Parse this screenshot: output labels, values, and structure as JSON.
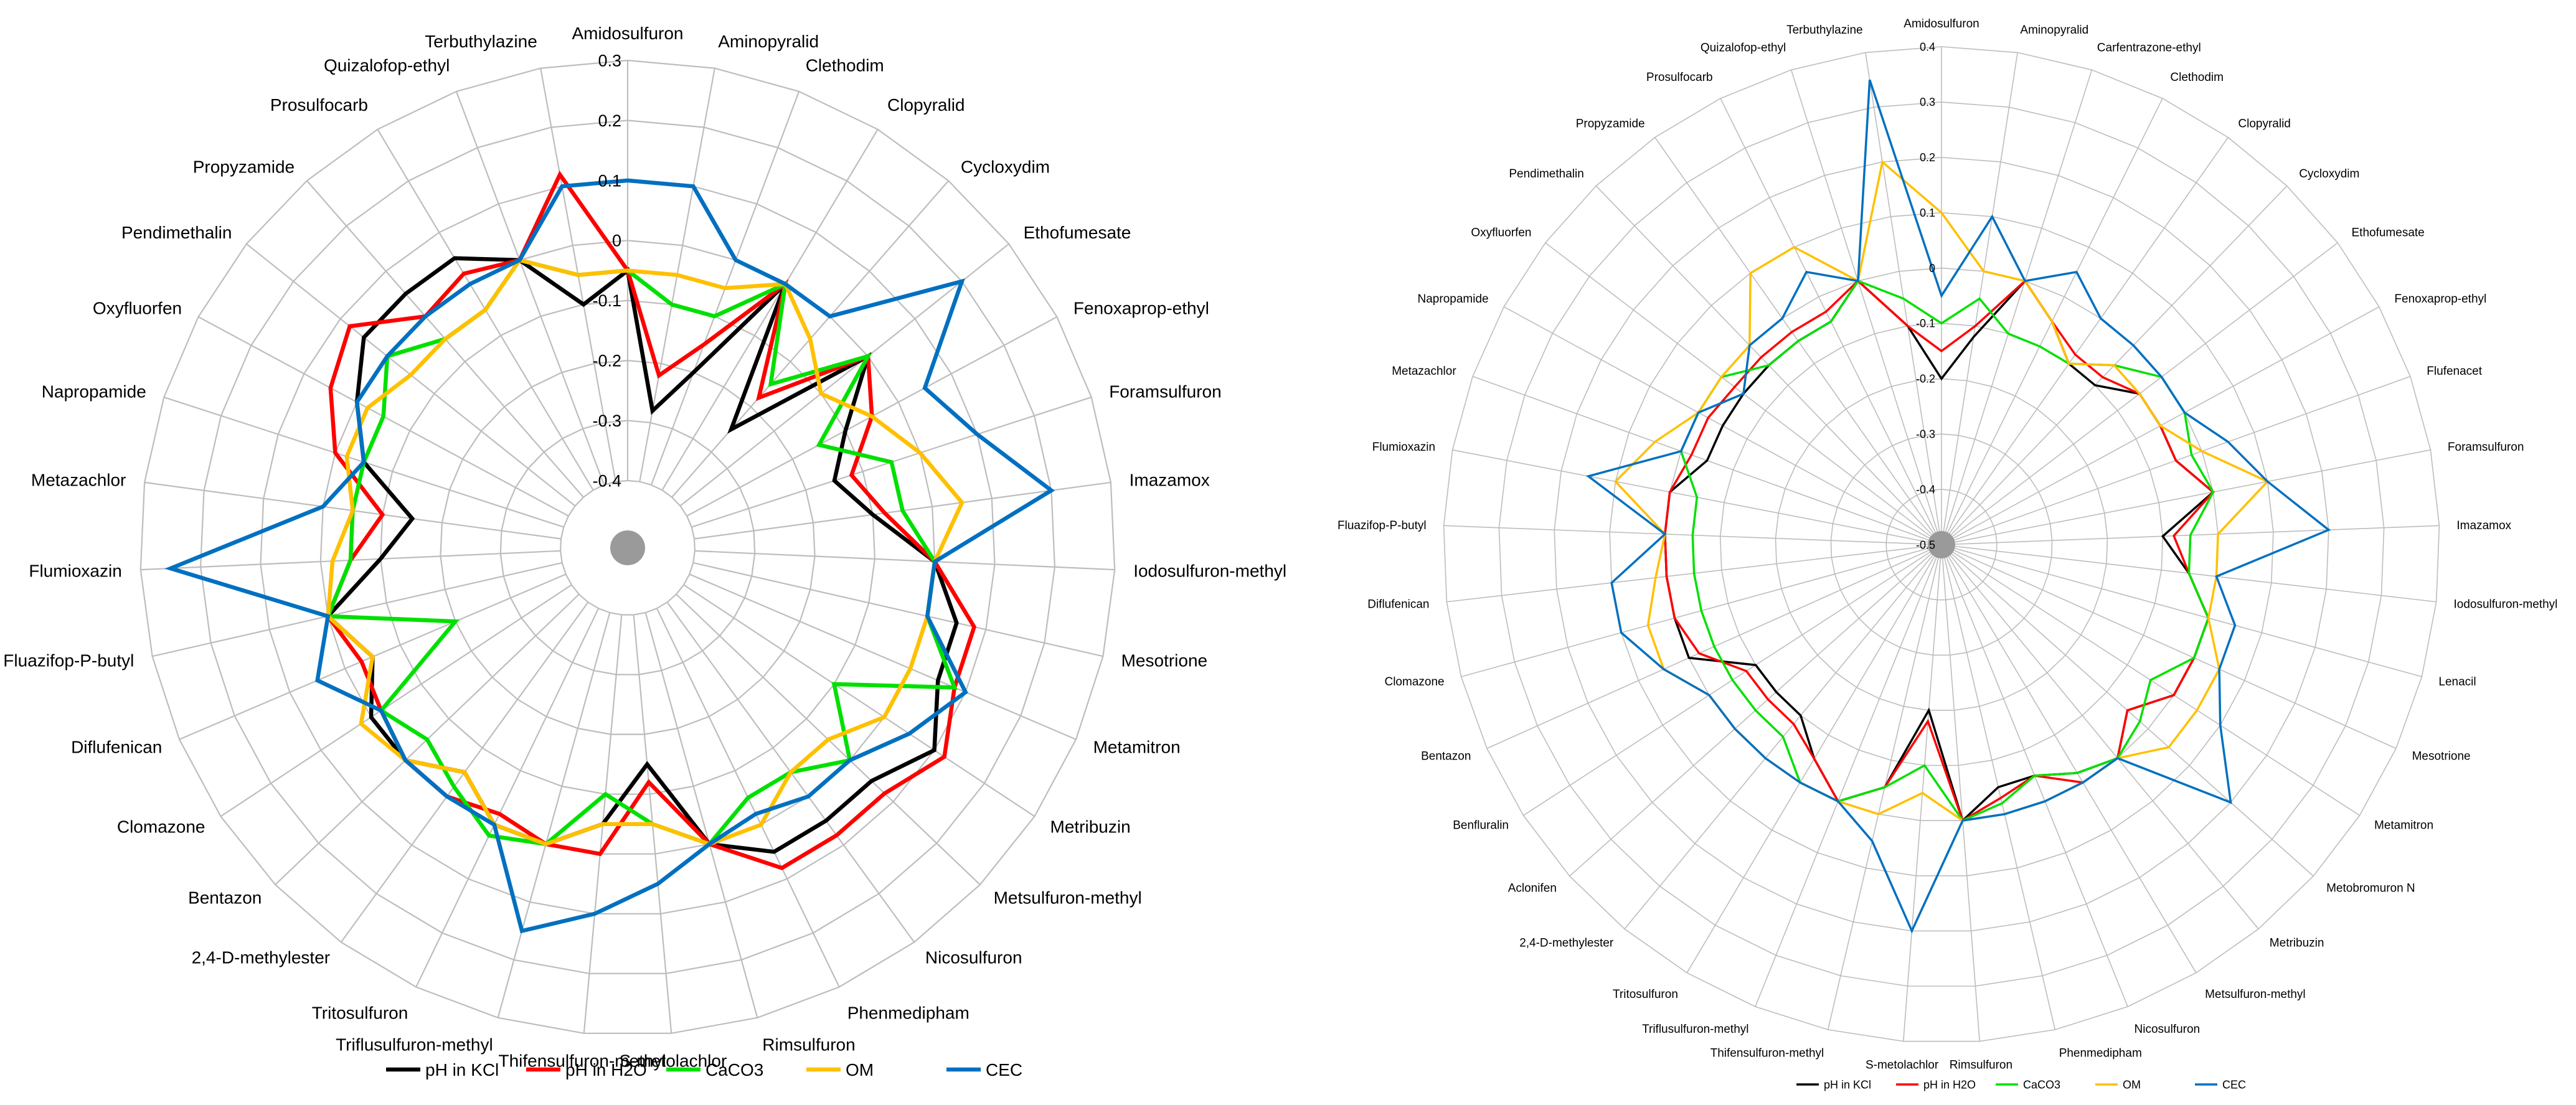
{
  "colors": {
    "pH in KCl": "#000000",
    "pH in H2O": "#ff0000",
    "CaCO3": "#00e000",
    "OM": "#ffc000",
    "CEC": "#0070c0"
  },
  "chart_data": [
    {
      "type": "radar",
      "ylim": [
        -0.4,
        0.3
      ],
      "ticks": [
        "-0.4",
        "-0.3",
        "-0.2",
        "-0.1",
        "0",
        "0.1",
        "0.2",
        "0.3"
      ],
      "categories": [
        "Amidosulfuron",
        "Aminopyralid",
        "Clethodim",
        "Clopyralid",
        "Cycloxydim",
        "Ethofumesate",
        "Fenoxaprop-ethyl",
        "Foramsulfuron",
        "Imazamox",
        "Iodosulfuron-methyl",
        "Mesotrione",
        "Metamitron",
        "Metribuzin",
        "Metsulfuron-methyl",
        "Nicosulfuron",
        "Phenmedipham",
        "Rimsulfuron",
        "S-metolachlor",
        "Thifensulfuron-methyl",
        "Triflusulfuron-methyl",
        "Tritosulfuron",
        "2,4-D-methylester",
        "Bentazon",
        "Clomazone",
        "Diflufenican",
        "Fluazifop-P-butyl",
        "Flumioxazin",
        "Metazachlor",
        "Napropamide",
        "Oxyfluorfen",
        "Pendimethalin",
        "Propyzamide",
        "Prosulfocarb",
        "Quizalofop-ethyl",
        "Terbuthylazine"
      ],
      "series": [
        {
          "name": "pH in KCl",
          "values": [
            -0.05,
            -0.28,
            -0.2,
            0,
            -0.25,
            0,
            -0.1,
            -0.15,
            -0.1,
            0,
            0.05,
            0.05,
            0.1,
            0.05,
            0.05,
            0.05,
            0,
            -0.15,
            -0.05,
            0,
            0,
            -0.05,
            0,
            0,
            -0.05,
            0,
            -0.1,
            -0.15,
            -0.05,
            0,
            0.05,
            0.05,
            0.05,
            0,
            -0.1
          ]
        },
        {
          "name": "pH in H2O",
          "values": [
            -0.05,
            -0.22,
            -0.15,
            0,
            -0.18,
            0,
            -0.05,
            -0.12,
            -0.08,
            0,
            0.08,
            0.08,
            0.12,
            0.08,
            0.08,
            0.08,
            0,
            -0.12,
            0,
            0,
            -0.02,
            0,
            0,
            -0.02,
            -0.03,
            0,
            -0.05,
            -0.1,
            0,
            0.05,
            0.08,
            0,
            0.02,
            0,
            0.12
          ]
        },
        {
          "name": "CaCO3",
          "values": [
            -0.05,
            -0.1,
            -0.1,
            0,
            -0.15,
            0,
            -0.15,
            -0.05,
            -0.05,
            0,
            0,
            0.08,
            -0.1,
            0,
            -0.05,
            -0.05,
            0,
            -0.05,
            -0.1,
            0,
            0.02,
            -0.02,
            -0.05,
            -0.02,
            -0.2,
            0,
            -0.05,
            -0.05,
            -0.05,
            -0.05,
            0,
            -0.05,
            -0.05,
            0,
            -0.05
          ]
        },
        {
          "name": "OM",
          "values": [
            -0.05,
            -0.05,
            -0.05,
            0,
            -0.05,
            -0.1,
            -0.05,
            0,
            0.05,
            0,
            0,
            0,
            0,
            -0.05,
            -0.05,
            0,
            0,
            -0.05,
            -0.05,
            0,
            0,
            -0.05,
            0,
            0.02,
            -0.05,
            0,
            -0.02,
            -0.05,
            -0.02,
            -0.02,
            -0.05,
            -0.05,
            -0.05,
            0,
            -0.05
          ]
        },
        {
          "name": "CEC",
          "values": [
            0.1,
            0.1,
            0,
            0,
            0,
            0.2,
            0.05,
            0.1,
            0.2,
            0,
            0,
            0.1,
            0.05,
            0,
            0,
            -0.02,
            0,
            0.05,
            0.1,
            0.15,
            0,
            0,
            0,
            -0.02,
            0.05,
            0,
            0.25,
            0,
            -0.05,
            0,
            0,
            0,
            0,
            0,
            0.1
          ]
        }
      ]
    },
    {
      "type": "radar",
      "ylim": [
        -0.5,
        0.4
      ],
      "ticks": [
        "-0.5",
        "-0.4",
        "-0.3",
        "-0.2",
        "-0.1",
        "0",
        "0.1",
        "0.2",
        "0.3",
        "0.4"
      ],
      "categories": [
        "Amidosulfuron",
        "Aminopyralid",
        "Carfentrazone-ethyl",
        "Clethodim",
        "Clopyralid",
        "Cycloxydim",
        "Ethofumesate",
        "Fenoxaprop-ethyl",
        "Flufenacet",
        "Foramsulfuron",
        "Imazamox",
        "Iodosulfuron-methyl",
        "Lenacil",
        "Mesotrione",
        "Metamitron",
        "Metobromuron N",
        "Metribuzin",
        "Metsulfuron-methyl",
        "Nicosulfuron",
        "Phenmedipham",
        "Rimsulfuron",
        "S-metolachlor",
        "Thifensulfuron-methyl",
        "Triflusulfuron-methyl",
        "Tritosulfuron",
        "2,4-D-methylester",
        "Aclonifen",
        "Benfluralin",
        "Bentazon",
        "Clomazone",
        "Diflufenican",
        "Fluazifop-P-butyl",
        "Flumioxazin",
        "Metazachlor",
        "Napropamide",
        "Oxyfluorfen",
        "Pendimethalin",
        "Propyzamide",
        "Prosulfocarb",
        "Quizalofop-ethyl",
        "Terbuthylazine"
      ],
      "series": [
        {
          "name": "pH in KCl",
          "values": [
            -0.2,
            -0.12,
            0,
            -0.05,
            -0.1,
            -0.1,
            -0.05,
            -0.05,
            -0.05,
            0,
            -0.1,
            -0.05,
            0,
            0,
            0,
            -0.05,
            0,
            -0.02,
            -0.05,
            -0.05,
            0,
            -0.2,
            -0.05,
            0,
            -0.05,
            -0.1,
            -0.1,
            -0.1,
            0,
            0,
            0,
            0,
            0,
            -0.05,
            -0.05,
            -0.05,
            -0.05,
            -0.05,
            -0.05,
            0,
            -0.1
          ]
        },
        {
          "name": "pH in H2O",
          "values": [
            -0.15,
            -0.1,
            0,
            -0.05,
            -0.08,
            -0.08,
            -0.05,
            -0.05,
            -0.05,
            0,
            -0.08,
            -0.05,
            0,
            0,
            0,
            -0.05,
            0,
            0,
            -0.05,
            -0.03,
            0,
            -0.18,
            -0.05,
            0,
            -0.05,
            -0.08,
            -0.08,
            -0.08,
            -0.02,
            0,
            0,
            0,
            0,
            -0.02,
            -0.02,
            -0.03,
            -0.03,
            -0.03,
            -0.03,
            0,
            -0.1
          ]
        },
        {
          "name": "CaCO3",
          "values": [
            -0.1,
            -0.05,
            -0.1,
            -0.1,
            -0.1,
            -0.05,
            0,
            0,
            -0.02,
            0,
            -0.05,
            -0.05,
            0,
            0,
            -0.05,
            -0.02,
            0,
            -0.02,
            -0.05,
            -0.02,
            0,
            -0.1,
            -0.05,
            0,
            0,
            -0.05,
            -0.05,
            -0.05,
            -0.05,
            -0.05,
            -0.05,
            -0.05,
            -0.05,
            0,
            0,
            0,
            -0.05,
            -0.05,
            -0.05,
            0,
            -0.05
          ]
        },
        {
          "name": "OM",
          "values": [
            0.1,
            0,
            0,
            -0.05,
            -0.1,
            -0.05,
            -0.05,
            -0.05,
            0,
            0.1,
            0,
            0,
            0,
            0.05,
            0.05,
            0.05,
            0,
            0,
            0,
            0,
            0,
            -0.05,
            0,
            0,
            0,
            0,
            0,
            0,
            0.05,
            0.05,
            0.02,
            0,
            0.1,
            0.05,
            0,
            0,
            0,
            0.1,
            0.1,
            0,
            0.2
          ]
        },
        {
          "name": "CEC",
          "values": [
            -0.05,
            0.1,
            0,
            0.05,
            0,
            0,
            0,
            0,
            0.05,
            0.1,
            0.2,
            0,
            0.05,
            0.05,
            0.1,
            0.2,
            0,
            0,
            0,
            0,
            0,
            0.2,
            0.05,
            0,
            0,
            0,
            0,
            0,
            0.05,
            0.1,
            0.1,
            0,
            0.15,
            0,
            0,
            -0.05,
            0,
            0,
            0.05,
            0,
            0.35
          ]
        }
      ]
    }
  ]
}
